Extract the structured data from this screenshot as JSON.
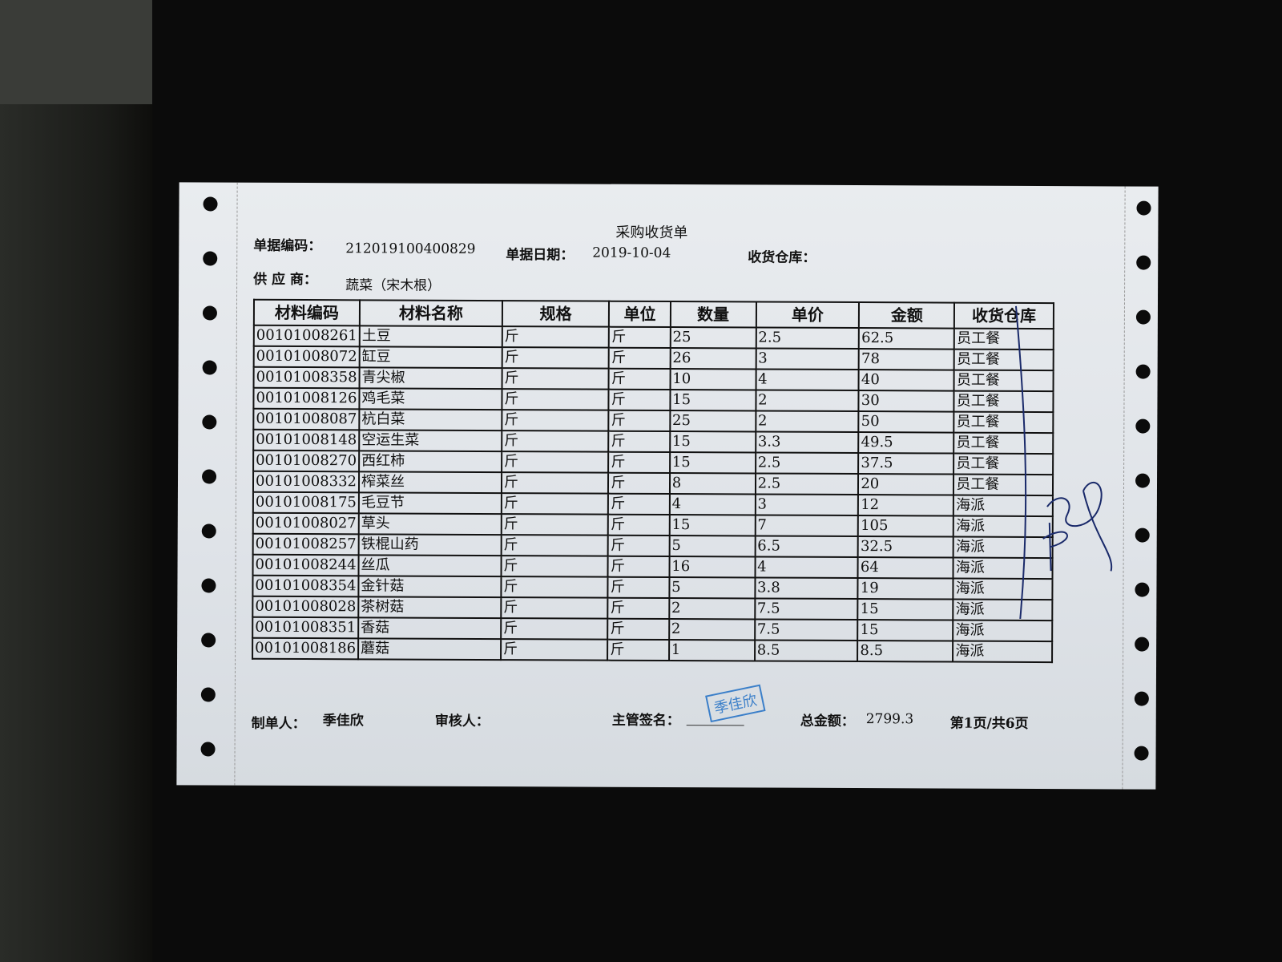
{
  "title": "采购收货单",
  "header": {
    "doc_no_label": "单据编码：",
    "doc_no": "212019100400829",
    "date_label": "单据日期：",
    "date": "2019-10-04",
    "warehouse_label": "收货仓库：",
    "supplier_label": "供 应 商：",
    "supplier": "蔬菜（宋木根）"
  },
  "table": {
    "columns": [
      "材料编码",
      "材料名称",
      "规格",
      "单位",
      "数量",
      "单价",
      "金额",
      "收货仓库"
    ],
    "rows": [
      [
        "00101008261",
        "土豆",
        "斤",
        "斤",
        "25",
        "2.5",
        "62.5",
        "员工餐"
      ],
      [
        "00101008072",
        "缸豆",
        "斤",
        "斤",
        "26",
        "3",
        "78",
        "员工餐"
      ],
      [
        "00101008358",
        "青尖椒",
        "斤",
        "斤",
        "10",
        "4",
        "40",
        "员工餐"
      ],
      [
        "00101008126",
        "鸡毛菜",
        "斤",
        "斤",
        "15",
        "2",
        "30",
        "员工餐"
      ],
      [
        "00101008087",
        "杭白菜",
        "斤",
        "斤",
        "25",
        "2",
        "50",
        "员工餐"
      ],
      [
        "00101008148",
        "空运生菜",
        "斤",
        "斤",
        "15",
        "3.3",
        "49.5",
        "员工餐"
      ],
      [
        "00101008270",
        "西红柿",
        "斤",
        "斤",
        "15",
        "2.5",
        "37.5",
        "员工餐"
      ],
      [
        "00101008332",
        "榨菜丝",
        "斤",
        "斤",
        "8",
        "2.5",
        "20",
        "员工餐"
      ],
      [
        "00101008175",
        "毛豆节",
        "斤",
        "斤",
        "4",
        "3",
        "12",
        "海派"
      ],
      [
        "00101008027",
        "草头",
        "斤",
        "斤",
        "15",
        "7",
        "105",
        "海派"
      ],
      [
        "00101008257",
        "铁棍山药",
        "斤",
        "斤",
        "5",
        "6.5",
        "32.5",
        "海派"
      ],
      [
        "00101008244",
        "丝瓜",
        "斤",
        "斤",
        "16",
        "4",
        "64",
        "海派"
      ],
      [
        "00101008354",
        "金针菇",
        "斤",
        "斤",
        "5",
        "3.8",
        "19",
        "海派"
      ],
      [
        "00101008028",
        "茶树菇",
        "斤",
        "斤",
        "2",
        "7.5",
        "15",
        "海派"
      ],
      [
        "00101008351",
        "香菇",
        "斤",
        "斤",
        "2",
        "7.5",
        "15",
        "海派"
      ],
      [
        "00101008186",
        "蘑菇",
        "斤",
        "斤",
        "1",
        "8.5",
        "8.5",
        "海派"
      ]
    ]
  },
  "footer": {
    "maker_label": "制单人：",
    "maker": "季佳欣",
    "reviewer_label": "审核人：",
    "supervisor_label": "主管签名：",
    "stamp": "季佳欣",
    "total_label": "总金额：",
    "total": "2799.3",
    "page": "第1页/共6页"
  },
  "colors": {
    "stamp": "#3b7fc9",
    "signature": "#1a2a6a"
  }
}
